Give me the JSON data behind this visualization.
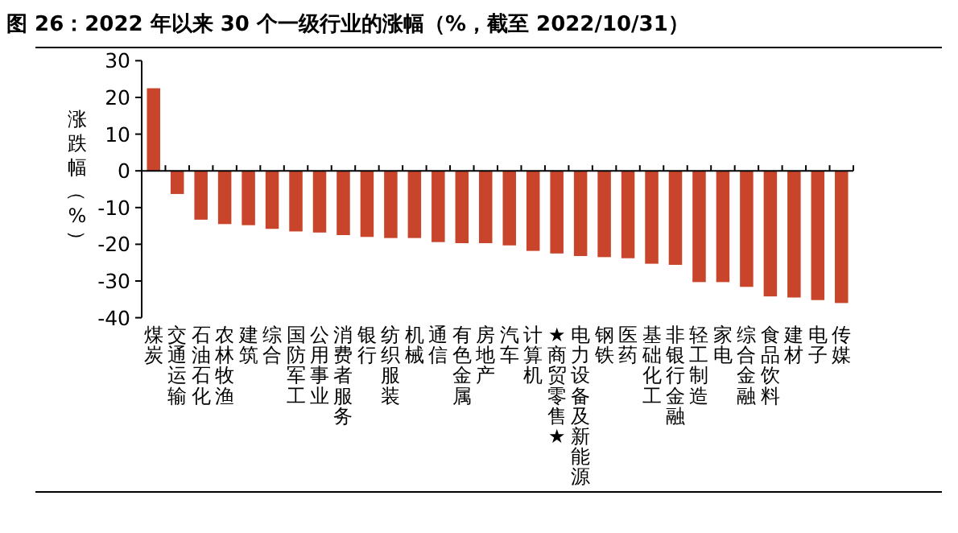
{
  "chart_data": {
    "type": "bar",
    "title": "图 26：2022 年以来 30 个一级行业的涨幅（%，截至 2022/10/31）",
    "ylabel": "涨跌幅（%）",
    "categories": [
      "煤炭",
      "交通运输",
      "石油石化",
      "农林牧渔",
      "建筑",
      "综合",
      "国防军工",
      "公用事业",
      "消费者服务",
      "银行",
      "纺织服装",
      "机械",
      "通信",
      "有色金属",
      "房地产",
      "汽车",
      "计算机",
      "★商贸零售★",
      "电力设备及新能源",
      "钢铁",
      "医药",
      "基础化工",
      "非银行金融",
      "轻工制造",
      "家电",
      "综合金融",
      "食品饮料",
      "建材",
      "电子",
      "传媒"
    ],
    "values": [
      22.5,
      -6.3,
      -13.3,
      -14.5,
      -14.8,
      -15.8,
      -16.5,
      -16.8,
      -17.5,
      -18.0,
      -18.3,
      -18.3,
      -19.4,
      -19.7,
      -19.7,
      -20.3,
      -21.8,
      -22.5,
      -23.2,
      -23.5,
      -23.8,
      -25.3,
      -25.6,
      -30.3,
      -30.3,
      -31.6,
      -34.2,
      -34.5,
      -35.2,
      -36.0
    ],
    "color": "#c8442a",
    "ylim": [
      -40,
      30
    ],
    "yticks": [
      -40,
      -30,
      -20,
      -10,
      0,
      10,
      20,
      30
    ]
  }
}
